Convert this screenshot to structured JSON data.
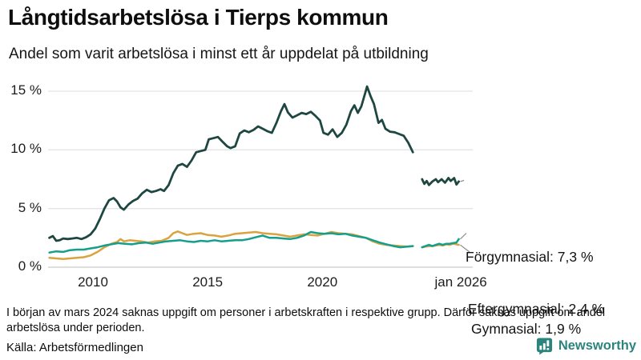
{
  "header": {
    "title": "Långtidsarbetslösa i Tierps kommun",
    "subtitle": "Andel som varit arbetslösa i minst ett år uppdelat på utbildning"
  },
  "chart_data": {
    "type": "line",
    "title": "Långtidsarbetslösa i Tierps kommun",
    "subtitle": "Andel som varit arbetslösa i minst ett år uppdelat på utbildning",
    "unit": "%",
    "xlim": [
      2008,
      2026.3
    ],
    "ylim": [
      0,
      16
    ],
    "grid": "horizontal",
    "legend": "inline-labels-at-line-end",
    "y_ticks": [
      {
        "v": 0,
        "label": "0 %"
      },
      {
        "v": 5,
        "label": "5 %"
      },
      {
        "v": 10,
        "label": "10 %"
      },
      {
        "v": 15,
        "label": "15 %"
      }
    ],
    "x_ticks": [
      {
        "v": 2010,
        "label": "2010"
      },
      {
        "v": 2015,
        "label": "2015"
      },
      {
        "v": 2020,
        "label": "2020"
      },
      {
        "v": 2026.04,
        "label": "jan 2026"
      }
    ],
    "series": [
      {
        "name": "Förgymnasial",
        "label": "Förgymnasial: 7,3 %",
        "latest_value": "7,3 %",
        "color": "#1e4742",
        "line_width": 2.8,
        "points": [
          [
            2008.1,
            2.5
          ],
          [
            2008.25,
            2.65
          ],
          [
            2008.4,
            2.25
          ],
          [
            2008.55,
            2.3
          ],
          [
            2008.7,
            2.45
          ],
          [
            2008.9,
            2.4
          ],
          [
            2009.1,
            2.45
          ],
          [
            2009.3,
            2.5
          ],
          [
            2009.5,
            2.4
          ],
          [
            2009.7,
            2.55
          ],
          [
            2009.9,
            2.8
          ],
          [
            2010.1,
            3.3
          ],
          [
            2010.3,
            4.1
          ],
          [
            2010.5,
            5.0
          ],
          [
            2010.7,
            5.7
          ],
          [
            2010.9,
            5.9
          ],
          [
            2011.05,
            5.6
          ],
          [
            2011.2,
            5.1
          ],
          [
            2011.35,
            4.9
          ],
          [
            2011.55,
            5.35
          ],
          [
            2011.75,
            5.65
          ],
          [
            2011.95,
            5.85
          ],
          [
            2012.15,
            6.3
          ],
          [
            2012.35,
            6.6
          ],
          [
            2012.55,
            6.4
          ],
          [
            2012.75,
            6.5
          ],
          [
            2012.95,
            6.65
          ],
          [
            2013.1,
            6.5
          ],
          [
            2013.3,
            7.0
          ],
          [
            2013.5,
            8.0
          ],
          [
            2013.7,
            8.65
          ],
          [
            2013.9,
            8.8
          ],
          [
            2014.1,
            8.55
          ],
          [
            2014.3,
            9.1
          ],
          [
            2014.5,
            9.8
          ],
          [
            2014.7,
            9.9
          ],
          [
            2014.9,
            10.0
          ],
          [
            2015.05,
            10.9
          ],
          [
            2015.25,
            11.0
          ],
          [
            2015.45,
            11.1
          ],
          [
            2015.65,
            10.7
          ],
          [
            2015.85,
            10.3
          ],
          [
            2016.0,
            10.15
          ],
          [
            2016.2,
            10.3
          ],
          [
            2016.4,
            11.4
          ],
          [
            2016.6,
            11.65
          ],
          [
            2016.8,
            11.5
          ],
          [
            2017.0,
            11.7
          ],
          [
            2017.2,
            12.0
          ],
          [
            2017.4,
            11.8
          ],
          [
            2017.6,
            11.6
          ],
          [
            2017.8,
            11.45
          ],
          [
            2018.0,
            12.3
          ],
          [
            2018.2,
            13.3
          ],
          [
            2018.35,
            13.9
          ],
          [
            2018.5,
            13.2
          ],
          [
            2018.7,
            12.75
          ],
          [
            2018.9,
            12.95
          ],
          [
            2019.1,
            13.15
          ],
          [
            2019.3,
            13.05
          ],
          [
            2019.5,
            13.25
          ],
          [
            2019.7,
            12.9
          ],
          [
            2019.9,
            12.5
          ],
          [
            2020.05,
            11.45
          ],
          [
            2020.25,
            11.3
          ],
          [
            2020.45,
            11.75
          ],
          [
            2020.65,
            11.1
          ],
          [
            2020.85,
            11.45
          ],
          [
            2021.05,
            12.15
          ],
          [
            2021.25,
            13.3
          ],
          [
            2021.4,
            13.8
          ],
          [
            2021.55,
            13.15
          ],
          [
            2021.7,
            13.7
          ],
          [
            2021.85,
            14.7
          ],
          [
            2021.95,
            15.4
          ],
          [
            2022.1,
            14.6
          ],
          [
            2022.25,
            13.9
          ],
          [
            2022.45,
            12.3
          ],
          [
            2022.6,
            12.55
          ],
          [
            2022.75,
            11.8
          ],
          [
            2022.95,
            11.55
          ],
          [
            2023.15,
            11.5
          ],
          [
            2023.35,
            11.35
          ],
          [
            2023.55,
            11.2
          ],
          [
            2023.75,
            10.6
          ],
          [
            2023.95,
            9.8
          ],
          null,
          [
            2024.35,
            7.5
          ],
          [
            2024.45,
            7.1
          ],
          [
            2024.55,
            7.35
          ],
          [
            2024.65,
            7.0
          ],
          [
            2024.8,
            7.3
          ],
          [
            2024.95,
            7.5
          ],
          [
            2025.05,
            7.25
          ],
          [
            2025.2,
            7.5
          ],
          [
            2025.35,
            7.2
          ],
          [
            2025.5,
            7.6
          ],
          [
            2025.6,
            7.35
          ],
          [
            2025.75,
            7.6
          ],
          [
            2025.85,
            7.05
          ],
          [
            2025.95,
            7.3
          ]
        ]
      },
      {
        "name": "Eftergymnasial",
        "label": "Eftergymnasial: 2,4 %",
        "latest_value": "2,4 %",
        "color": "#149e8c",
        "line_width": 2.5,
        "points": [
          [
            2008.1,
            1.25
          ],
          [
            2008.4,
            1.35
          ],
          [
            2008.7,
            1.3
          ],
          [
            2009.0,
            1.45
          ],
          [
            2009.3,
            1.5
          ],
          [
            2009.6,
            1.5
          ],
          [
            2009.9,
            1.6
          ],
          [
            2010.2,
            1.7
          ],
          [
            2010.5,
            1.85
          ],
          [
            2010.8,
            1.95
          ],
          [
            2011.1,
            2.05
          ],
          [
            2011.4,
            2.0
          ],
          [
            2011.7,
            1.95
          ],
          [
            2012.0,
            2.05
          ],
          [
            2012.3,
            2.1
          ],
          [
            2012.6,
            2.0
          ],
          [
            2012.9,
            2.1
          ],
          [
            2013.2,
            2.2
          ],
          [
            2013.5,
            2.25
          ],
          [
            2013.8,
            2.3
          ],
          [
            2014.1,
            2.2
          ],
          [
            2014.4,
            2.15
          ],
          [
            2014.7,
            2.25
          ],
          [
            2015.0,
            2.2
          ],
          [
            2015.3,
            2.3
          ],
          [
            2015.6,
            2.2
          ],
          [
            2015.9,
            2.25
          ],
          [
            2016.2,
            2.3
          ],
          [
            2016.5,
            2.3
          ],
          [
            2016.8,
            2.4
          ],
          [
            2017.1,
            2.55
          ],
          [
            2017.4,
            2.7
          ],
          [
            2017.7,
            2.5
          ],
          [
            2018.0,
            2.5
          ],
          [
            2018.3,
            2.45
          ],
          [
            2018.6,
            2.4
          ],
          [
            2018.9,
            2.5
          ],
          [
            2019.2,
            2.7
          ],
          [
            2019.5,
            3.0
          ],
          [
            2019.8,
            2.9
          ],
          [
            2020.1,
            2.85
          ],
          [
            2020.4,
            2.9
          ],
          [
            2020.7,
            2.8
          ],
          [
            2021.0,
            2.85
          ],
          [
            2021.3,
            2.7
          ],
          [
            2021.6,
            2.6
          ],
          [
            2021.9,
            2.5
          ],
          [
            2022.2,
            2.3
          ],
          [
            2022.5,
            2.1
          ],
          [
            2022.8,
            1.95
          ],
          [
            2023.1,
            1.8
          ],
          [
            2023.4,
            1.7
          ],
          [
            2023.7,
            1.75
          ],
          [
            2023.95,
            1.8
          ],
          null,
          [
            2024.35,
            1.7
          ],
          [
            2024.5,
            1.8
          ],
          [
            2024.65,
            1.9
          ],
          [
            2024.8,
            1.8
          ],
          [
            2024.95,
            1.9
          ],
          [
            2025.1,
            2.0
          ],
          [
            2025.25,
            1.9
          ],
          [
            2025.4,
            2.0
          ],
          [
            2025.55,
            2.0
          ],
          [
            2025.7,
            2.05
          ],
          [
            2025.85,
            2.1
          ],
          [
            2025.95,
            2.4
          ]
        ]
      },
      {
        "name": "Gymnasial",
        "label": "Gymnasial: 1,9 %",
        "latest_value": "1,9 %",
        "color": "#daa33f",
        "line_width": 2.5,
        "points": [
          [
            2008.1,
            0.8
          ],
          [
            2008.4,
            0.75
          ],
          [
            2008.7,
            0.7
          ],
          [
            2009.0,
            0.75
          ],
          [
            2009.3,
            0.8
          ],
          [
            2009.6,
            0.85
          ],
          [
            2009.9,
            1.0
          ],
          [
            2010.2,
            1.3
          ],
          [
            2010.5,
            1.7
          ],
          [
            2010.8,
            2.0
          ],
          [
            2011.05,
            2.15
          ],
          [
            2011.2,
            2.4
          ],
          [
            2011.35,
            2.2
          ],
          [
            2011.6,
            2.3
          ],
          [
            2011.85,
            2.25
          ],
          [
            2012.1,
            2.2
          ],
          [
            2012.4,
            2.1
          ],
          [
            2012.7,
            2.2
          ],
          [
            2013.0,
            2.25
          ],
          [
            2013.3,
            2.5
          ],
          [
            2013.5,
            2.9
          ],
          [
            2013.7,
            3.05
          ],
          [
            2013.9,
            2.9
          ],
          [
            2014.1,
            2.75
          ],
          [
            2014.4,
            2.85
          ],
          [
            2014.7,
            2.9
          ],
          [
            2015.0,
            2.75
          ],
          [
            2015.3,
            2.7
          ],
          [
            2015.6,
            2.6
          ],
          [
            2015.9,
            2.7
          ],
          [
            2016.2,
            2.85
          ],
          [
            2016.5,
            2.9
          ],
          [
            2016.8,
            2.95
          ],
          [
            2017.1,
            3.0
          ],
          [
            2017.4,
            2.9
          ],
          [
            2017.7,
            2.85
          ],
          [
            2018.0,
            2.8
          ],
          [
            2018.3,
            2.7
          ],
          [
            2018.6,
            2.6
          ],
          [
            2018.9,
            2.7
          ],
          [
            2019.2,
            2.8
          ],
          [
            2019.5,
            2.75
          ],
          [
            2019.8,
            2.7
          ],
          [
            2020.1,
            2.85
          ],
          [
            2020.4,
            3.0
          ],
          [
            2020.7,
            2.9
          ],
          [
            2021.0,
            2.85
          ],
          [
            2021.3,
            2.8
          ],
          [
            2021.6,
            2.65
          ],
          [
            2021.9,
            2.5
          ],
          [
            2022.2,
            2.2
          ],
          [
            2022.5,
            2.0
          ],
          [
            2022.8,
            1.9
          ],
          [
            2023.1,
            1.85
          ],
          [
            2023.4,
            1.8
          ],
          [
            2023.7,
            1.75
          ],
          [
            2023.95,
            1.8
          ],
          null,
          [
            2024.35,
            1.7
          ],
          [
            2024.5,
            1.75
          ],
          [
            2024.65,
            1.8
          ],
          [
            2024.8,
            1.8
          ],
          [
            2024.95,
            1.85
          ],
          [
            2025.1,
            1.9
          ],
          [
            2025.25,
            1.85
          ],
          [
            2025.4,
            1.95
          ],
          [
            2025.55,
            1.9
          ],
          [
            2025.7,
            2.0
          ],
          [
            2025.85,
            1.95
          ],
          [
            2025.95,
            1.9
          ]
        ]
      }
    ]
  },
  "footer": {
    "note": "I början av mars 2024 saknas uppgift om personer i arbetskraften i respektive grupp. Därför saknas uppgift om andel arbetslösa under perioden.",
    "source": "Källa: Arbetsförmedlingen",
    "brand": "Newsworthy"
  },
  "colors": {
    "forgymnasial": "#1e4742",
    "eftergymnasial": "#149e8c",
    "gymnasial": "#daa33f",
    "gridline": "#e4e4e4",
    "zero_line": "#c9c9c9",
    "leader_line": "#8a8a8a",
    "brand_teal": "#2c847d"
  }
}
